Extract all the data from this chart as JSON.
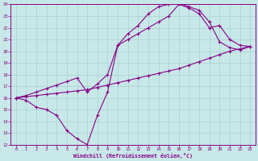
{
  "xlabel": "Windchill (Refroidissement éolien,°C)",
  "background_color": "#c8e8e8",
  "grid_color": "#a8d0d0",
  "line_color": "#880088",
  "xlim": [
    -0.5,
    23.5
  ],
  "ylim": [
    12,
    24
  ],
  "xticks": [
    0,
    1,
    2,
    3,
    4,
    5,
    6,
    7,
    8,
    9,
    10,
    11,
    12,
    13,
    14,
    15,
    16,
    17,
    18,
    19,
    20,
    21,
    22,
    23
  ],
  "yticks": [
    12,
    13,
    14,
    15,
    16,
    17,
    18,
    19,
    20,
    21,
    22,
    23,
    24
  ],
  "line1_x": [
    0,
    1,
    2,
    3,
    4,
    5,
    6,
    7,
    8,
    9,
    10,
    11,
    12,
    13,
    14,
    15,
    16,
    17,
    18,
    19,
    20,
    21,
    22,
    23
  ],
  "line1_y": [
    16.0,
    15.8,
    15.2,
    15.0,
    14.5,
    13.2,
    12.5,
    12.0,
    14.5,
    16.5,
    20.5,
    21.5,
    22.2,
    23.2,
    23.8,
    24.0,
    24.1,
    23.8,
    23.5,
    22.5,
    20.8,
    20.3,
    20.1,
    20.4
  ],
  "line2_x": [
    0,
    1,
    2,
    3,
    4,
    5,
    6,
    7,
    8,
    9,
    10,
    11,
    12,
    13,
    14,
    15,
    16,
    17,
    18,
    19,
    20,
    21,
    22,
    23
  ],
  "line2_y": [
    16.0,
    16.1,
    16.2,
    16.3,
    16.4,
    16.5,
    16.6,
    16.7,
    16.9,
    17.1,
    17.3,
    17.5,
    17.7,
    17.9,
    18.1,
    18.3,
    18.5,
    18.8,
    19.1,
    19.4,
    19.7,
    20.0,
    20.2,
    20.4
  ],
  "line3_x": [
    0,
    1,
    2,
    3,
    4,
    5,
    6,
    7,
    8,
    9,
    10,
    11,
    12,
    13,
    14,
    15,
    16,
    17,
    18,
    19,
    20,
    21,
    22,
    23
  ],
  "line3_y": [
    16.0,
    16.2,
    16.5,
    16.8,
    17.1,
    17.4,
    17.7,
    16.5,
    17.2,
    18.0,
    20.5,
    21.0,
    21.5,
    22.0,
    22.5,
    23.0,
    24.0,
    23.7,
    23.2,
    22.0,
    22.2,
    21.0,
    20.5,
    20.4
  ]
}
